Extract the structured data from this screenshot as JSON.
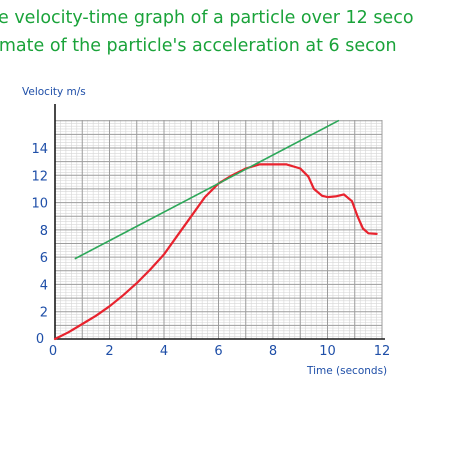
{
  "heading": {
    "line1": "e velocity-time graph of a particle over 12 seco",
    "line2": "imate of the particle's acceleration at 6 secon"
  },
  "chart_data": {
    "type": "line",
    "title": "",
    "xlabel": "Time (seconds)",
    "ylabel": "Velocity m/s",
    "xlim": [
      0,
      12
    ],
    "ylim": [
      0,
      16
    ],
    "x_ticks": [
      "0",
      "2",
      "4",
      "6",
      "8",
      "10",
      "12"
    ],
    "y_ticks": [
      "0",
      "2",
      "4",
      "6",
      "8",
      "10",
      "12",
      "14"
    ],
    "grid": true,
    "legend": "none",
    "series": [
      {
        "color": "#e8232e",
        "x": [
          0,
          0.5,
          1,
          1.5,
          2,
          2.5,
          3,
          3.5,
          4,
          4.5,
          5,
          5.5,
          6,
          6.5,
          7,
          7.5,
          8,
          8.5,
          9,
          9.3,
          9.5,
          9.8,
          10,
          10.3,
          10.6,
          10.9,
          11.1,
          11.3,
          11.5,
          11.8
        ],
        "y": [
          0,
          0.5,
          1.1,
          1.7,
          2.4,
          3.2,
          4.1,
          5.1,
          6.2,
          7.6,
          9.0,
          10.4,
          11.4,
          12.0,
          12.5,
          12.8,
          12.8,
          12.8,
          12.5,
          11.9,
          11.0,
          10.5,
          10.4,
          10.45,
          10.6,
          10.1,
          9.0,
          8.1,
          7.75,
          7.7
        ]
      },
      {
        "color": "#2ea85a",
        "x": [
          0.75,
          10.4
        ],
        "y": [
          5.9,
          16.0
        ]
      }
    ]
  }
}
